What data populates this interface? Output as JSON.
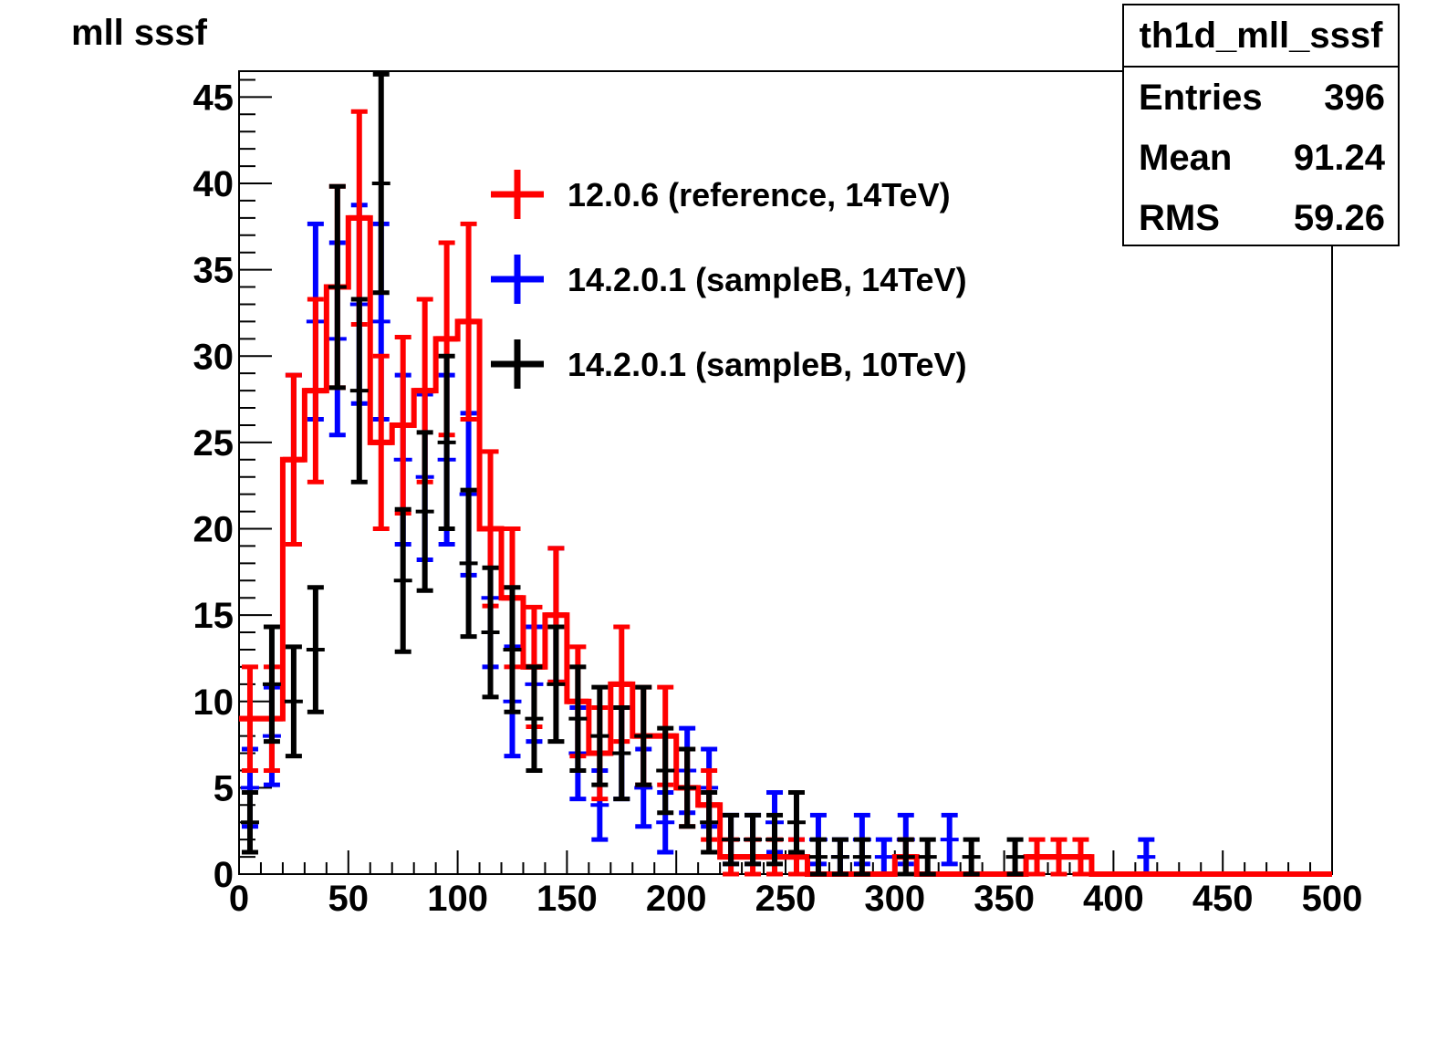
{
  "title": "mll sssf",
  "stats": {
    "name": "th1d_mll_sssf",
    "rows": [
      {
        "key": "Entries",
        "value": "396"
      },
      {
        "key": "Mean",
        "value": "91.24"
      },
      {
        "key": "RMS",
        "value": "59.26"
      }
    ]
  },
  "chart_data": {
    "type": "histogram",
    "xlim": [
      0,
      500
    ],
    "ylim": [
      0,
      46.5
    ],
    "bin_width": 10,
    "x_ticks": [
      0,
      50,
      100,
      150,
      200,
      250,
      300,
      350,
      400,
      450,
      500
    ],
    "y_ticks": [
      0,
      5,
      10,
      15,
      20,
      25,
      30,
      35,
      40,
      45
    ],
    "x_tick_labels": [
      "0",
      "50",
      "100",
      "150",
      "200",
      "250",
      "300",
      "350",
      "400",
      "450",
      "500"
    ],
    "y_tick_labels": [
      "0",
      "5",
      "10",
      "15",
      "20",
      "25",
      "30",
      "35",
      "40",
      "45"
    ],
    "legend_position": "top-center",
    "series": [
      {
        "name": "12.0.6 (reference, 14TeV)",
        "color": "#ff0000",
        "style": "step-with-errors",
        "values": [
          9,
          9,
          24,
          28,
          34,
          38,
          25,
          26,
          28,
          31,
          32,
          20,
          16,
          12,
          15,
          10,
          7,
          11,
          8,
          8,
          5,
          4,
          1,
          1,
          1,
          1,
          0,
          0,
          0,
          0,
          1,
          0,
          0,
          0,
          0,
          0,
          1,
          1,
          1,
          0,
          0,
          0,
          0,
          0,
          0,
          0,
          0,
          0,
          0,
          0
        ]
      },
      {
        "name": "14.2.0.1 (sampleB, 14TeV)",
        "color": "#0000ff",
        "style": "errorbars",
        "values": [
          5,
          8,
          24,
          32,
          31,
          33,
          32,
          24,
          23,
          24,
          22,
          16,
          10,
          11,
          15,
          7,
          4,
          7,
          5,
          3,
          6,
          5,
          2,
          2,
          3,
          1,
          2,
          1,
          2,
          1,
          2,
          0,
          2,
          0,
          0,
          0,
          0,
          0,
          0,
          0,
          0,
          1,
          0,
          0,
          0,
          0,
          0,
          0,
          0,
          0
        ]
      },
      {
        "name": "14.2.0.1 (sampleB, 10TeV)",
        "color": "#000000",
        "style": "errorbars",
        "values": [
          3,
          11,
          10,
          13,
          34,
          28,
          40,
          17,
          21,
          25,
          18,
          14,
          13,
          9,
          11,
          9,
          8,
          7,
          8,
          6,
          5,
          3,
          2,
          2,
          2,
          3,
          1,
          1,
          1,
          0,
          1,
          1,
          0,
          1,
          0,
          1,
          0,
          0,
          0,
          0,
          0,
          0,
          0,
          0,
          0,
          0,
          0,
          0,
          0,
          0
        ]
      }
    ]
  }
}
